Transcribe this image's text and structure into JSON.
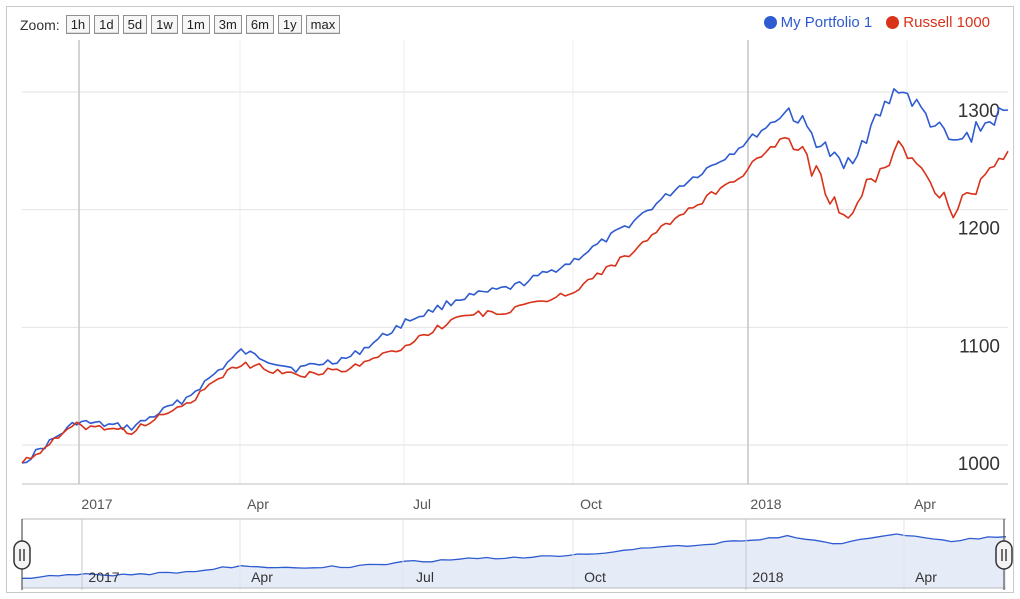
{
  "zoom": {
    "label": "Zoom:",
    "buttons": [
      "1h",
      "1d",
      "5d",
      "1w",
      "1m",
      "3m",
      "6m",
      "1y",
      "max"
    ]
  },
  "legend": [
    {
      "name": "My Portfolio 1",
      "color": "#2e5bd0"
    },
    {
      "name": "Russell 1000",
      "color": "#d8321a"
    }
  ],
  "chart_data": {
    "type": "line",
    "y_ticks": [
      "1000",
      "1100",
      "1200",
      "1300"
    ],
    "x_ticks": [
      "2017",
      "Apr",
      "Jul",
      "Oct",
      "2018",
      "Apr"
    ],
    "navigator_ticks": [
      "2017",
      "Apr",
      "Jul",
      "Oct",
      "2018",
      "Apr"
    ],
    "ylim": [
      1000,
      1300
    ],
    "grid": true,
    "legend_position": "top-right",
    "x": [
      "2016-11",
      "2016-12",
      "2017-01",
      "2017-02",
      "2017-03",
      "2017-04",
      "2017-05",
      "2017-06",
      "2017-07",
      "2017-08",
      "2017-09",
      "2017-10",
      "2017-11",
      "2017-12",
      "2018-01",
      "2018-02",
      "2018-03",
      "2018-04",
      "2018-05"
    ],
    "series": [
      {
        "name": "My Portfolio 1",
        "color": "#2e5bd0",
        "values": [
          1000,
          1035,
          1030,
          1055,
          1095,
          1080,
          1090,
          1120,
          1140,
          1150,
          1170,
          1200,
          1235,
          1265,
          1300,
          1250,
          1320,
          1270,
          1300
        ]
      },
      {
        "name": "Russell 1000",
        "color": "#d8321a",
        "values": [
          1000,
          1032,
          1027,
          1050,
          1085,
          1075,
          1080,
          1100,
          1125,
          1130,
          1145,
          1175,
          1210,
          1240,
          1280,
          1210,
          1270,
          1215,
          1265
        ]
      }
    ]
  }
}
